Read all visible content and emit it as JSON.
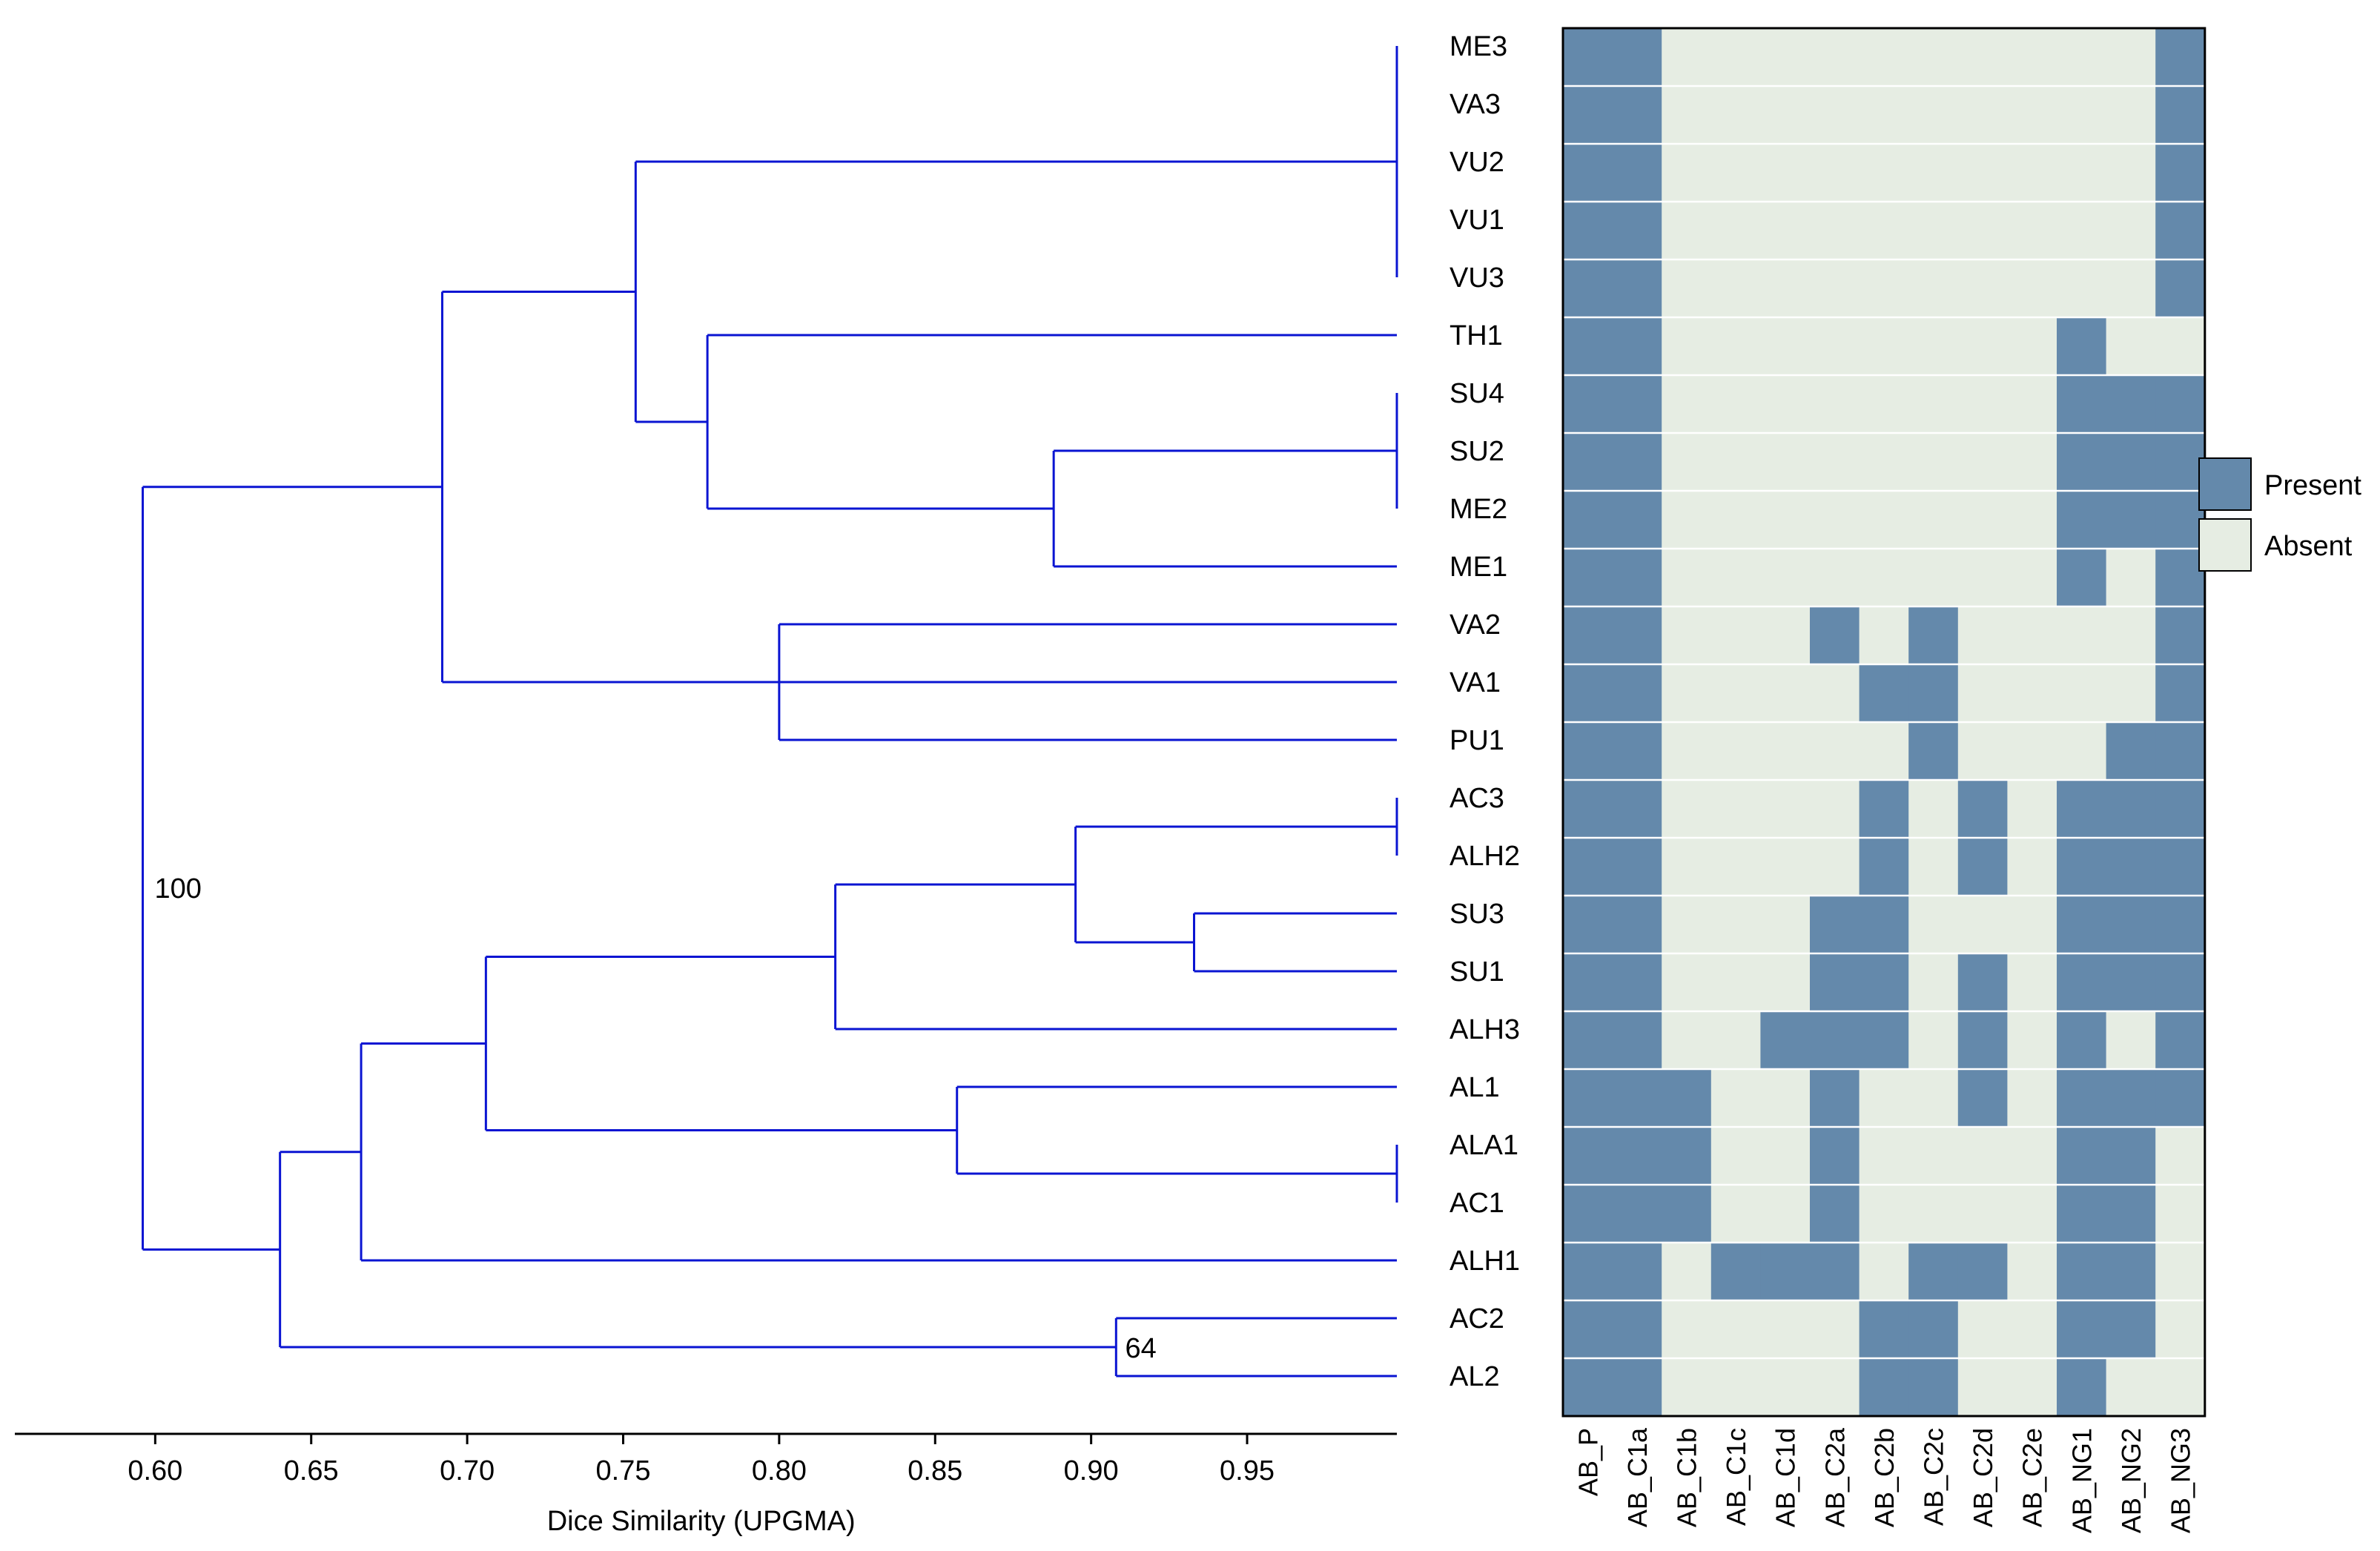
{
  "chart_data": {
    "type": "heatmap",
    "title": "",
    "dendrogram": {
      "method": "Dice Similarity (UPGMA)",
      "xlabel": "Dice Similarity (UPGMA)",
      "xlim": [
        0.555,
        0.998
      ],
      "ticks": [
        "0.60",
        "0.65",
        "0.70",
        "0.75",
        "0.80",
        "0.85",
        "0.90",
        "0.95"
      ],
      "tick_values": [
        0.6,
        0.65,
        0.7,
        0.75,
        0.8,
        0.85,
        0.9,
        0.95
      ],
      "bootstrap_labels": [
        {
          "label": "100",
          "node_similarity": 0.596
        },
        {
          "label": "64",
          "node_similarity": 0.909
        }
      ],
      "nodes": [
        {
          "id": "n1",
          "similarity": 0.908,
          "children": [
            "AL2",
            "AC2"
          ]
        },
        {
          "id": "n2",
          "similarity": 1.0,
          "children": [
            "ALA1",
            "AC1"
          ]
        },
        {
          "id": "n3",
          "similarity": 0.857,
          "children": [
            "AL1",
            "n2"
          ]
        },
        {
          "id": "n4",
          "similarity": 0.933,
          "children": [
            "SU3",
            "SU1"
          ]
        },
        {
          "id": "n5",
          "similarity": 1.0,
          "children": [
            "AC3",
            "ALH2"
          ]
        },
        {
          "id": "n6",
          "similarity": 0.895,
          "children": [
            "n5",
            "n4"
          ]
        },
        {
          "id": "n7",
          "similarity": 0.818,
          "children": [
            "n6",
            "ALH3"
          ]
        },
        {
          "id": "n8",
          "similarity": 0.706,
          "children": [
            "n7",
            "n3"
          ]
        },
        {
          "id": "n9",
          "similarity": 0.666,
          "children": [
            "n8",
            "ALH1"
          ]
        },
        {
          "id": "n10",
          "similarity": 0.64,
          "children": [
            "n9",
            "n1"
          ]
        },
        {
          "id": "n11",
          "similarity": 0.8,
          "children": [
            "VA2",
            "VA1",
            "PU1"
          ]
        },
        {
          "id": "n12",
          "similarity": 1.0,
          "children": [
            "SU4",
            "SU2",
            "ME2"
          ]
        },
        {
          "id": "n13",
          "similarity": 0.888,
          "children": [
            "n12",
            "ME1"
          ]
        },
        {
          "id": "n14",
          "similarity": 0.777,
          "children": [
            "TH1",
            "n13"
          ]
        },
        {
          "id": "n15",
          "similarity": 1.0,
          "children": [
            "ME3",
            "VA3",
            "VU2",
            "VU1",
            "VU3"
          ]
        },
        {
          "id": "n16",
          "similarity": 0.754,
          "children": [
            "n15",
            "n14"
          ]
        },
        {
          "id": "n17",
          "similarity": 0.692,
          "children": [
            "n16",
            "n11"
          ]
        },
        {
          "id": "n18",
          "similarity": 0.596,
          "children": [
            "n17",
            "n10"
          ]
        }
      ]
    },
    "rows": [
      "ME3",
      "VA3",
      "VU2",
      "VU1",
      "VU3",
      "TH1",
      "SU4",
      "SU2",
      "ME2",
      "ME1",
      "VA2",
      "VA1",
      "PU1",
      "AC3",
      "ALH2",
      "SU3",
      "SU1",
      "ALH3",
      "AL1",
      "ALA1",
      "AC1",
      "ALH1",
      "AC2",
      "AL2"
    ],
    "columns": [
      "AB_P",
      "AB_C1a",
      "AB_C1b",
      "AB_C1c",
      "AB_C1d",
      "AB_C2a",
      "AB_C2b",
      "AB_C2c",
      "AB_C2d",
      "AB_C2e",
      "AB_NG1",
      "AB_NG2",
      "AB_NG3"
    ],
    "matrix": [
      [
        1,
        1,
        0,
        0,
        0,
        0,
        0,
        0,
        0,
        0,
        0,
        0,
        1
      ],
      [
        1,
        1,
        0,
        0,
        0,
        0,
        0,
        0,
        0,
        0,
        0,
        0,
        1
      ],
      [
        1,
        1,
        0,
        0,
        0,
        0,
        0,
        0,
        0,
        0,
        0,
        0,
        1
      ],
      [
        1,
        1,
        0,
        0,
        0,
        0,
        0,
        0,
        0,
        0,
        0,
        0,
        1
      ],
      [
        1,
        1,
        0,
        0,
        0,
        0,
        0,
        0,
        0,
        0,
        0,
        0,
        1
      ],
      [
        1,
        1,
        0,
        0,
        0,
        0,
        0,
        0,
        0,
        0,
        1,
        0,
        0
      ],
      [
        1,
        1,
        0,
        0,
        0,
        0,
        0,
        0,
        0,
        0,
        1,
        1,
        1
      ],
      [
        1,
        1,
        0,
        0,
        0,
        0,
        0,
        0,
        0,
        0,
        1,
        1,
        1
      ],
      [
        1,
        1,
        0,
        0,
        0,
        0,
        0,
        0,
        0,
        0,
        1,
        1,
        1
      ],
      [
        1,
        1,
        0,
        0,
        0,
        0,
        0,
        0,
        0,
        0,
        1,
        0,
        1
      ],
      [
        1,
        1,
        0,
        0,
        0,
        1,
        0,
        1,
        0,
        0,
        0,
        0,
        1
      ],
      [
        1,
        1,
        0,
        0,
        0,
        0,
        1,
        1,
        0,
        0,
        0,
        0,
        1
      ],
      [
        1,
        1,
        0,
        0,
        0,
        0,
        0,
        1,
        0,
        0,
        0,
        1,
        1
      ],
      [
        1,
        1,
        0,
        0,
        0,
        0,
        1,
        0,
        1,
        0,
        1,
        1,
        1
      ],
      [
        1,
        1,
        0,
        0,
        0,
        0,
        1,
        0,
        1,
        0,
        1,
        1,
        1
      ],
      [
        1,
        1,
        0,
        0,
        0,
        1,
        1,
        0,
        0,
        0,
        1,
        1,
        1
      ],
      [
        1,
        1,
        0,
        0,
        0,
        1,
        1,
        0,
        1,
        0,
        1,
        1,
        1
      ],
      [
        1,
        1,
        0,
        0,
        1,
        1,
        1,
        0,
        1,
        0,
        1,
        0,
        1
      ],
      [
        1,
        1,
        1,
        0,
        0,
        1,
        0,
        0,
        1,
        0,
        1,
        1,
        1
      ],
      [
        1,
        1,
        1,
        0,
        0,
        1,
        0,
        0,
        0,
        0,
        1,
        1,
        0
      ],
      [
        1,
        1,
        1,
        0,
        0,
        1,
        0,
        0,
        0,
        0,
        1,
        1,
        0
      ],
      [
        1,
        1,
        0,
        1,
        1,
        1,
        0,
        1,
        1,
        0,
        1,
        1,
        0
      ],
      [
        1,
        1,
        0,
        0,
        0,
        0,
        1,
        1,
        0,
        0,
        1,
        1,
        0
      ],
      [
        1,
        1,
        0,
        0,
        0,
        0,
        1,
        1,
        0,
        0,
        1,
        0,
        0
      ]
    ],
    "legend": {
      "position": "right",
      "items": [
        {
          "label": "Present",
          "value": 1,
          "color": "#6489ab"
        },
        {
          "label": "Absent",
          "value": 0,
          "color": "#e6ede3"
        }
      ]
    },
    "colors": {
      "present": "#6489ab",
      "absent": "#e6ede3",
      "tree": "#0a14d2",
      "grid": "#ffffff",
      "border": "#000000"
    }
  }
}
